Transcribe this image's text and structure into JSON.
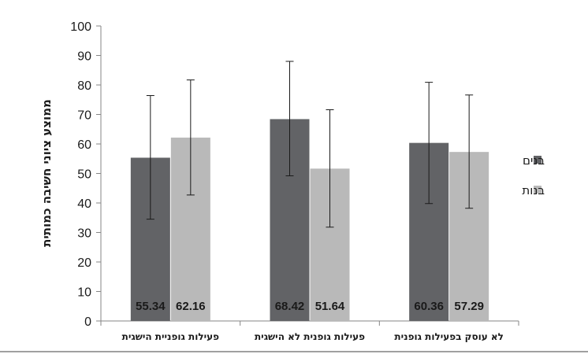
{
  "chart_data": {
    "type": "bar",
    "title": "",
    "xlabel": "",
    "ylabel": "ממוצע ציוני חשיבה כמותית",
    "ylim": [
      0,
      100
    ],
    "ytick_step": 10,
    "categories": [
      "פעילות  גופניית הישגית",
      "פעילות גופנית לא הישגית",
      "לא עוסק בפעילות גופנית"
    ],
    "series": [
      {
        "name": "בנים",
        "color": "#626366",
        "values": [
          55.34,
          68.42,
          60.36
        ],
        "value_labels": [
          "55.34",
          "68.42",
          "60.36"
        ],
        "error_low": [
          34.5,
          49.2,
          39.8
        ],
        "error_high": [
          76.4,
          88.0,
          80.9
        ]
      },
      {
        "name": "בנות",
        "color": "#b9b9b9",
        "values": [
          62.16,
          51.64,
          57.29
        ],
        "value_labels": [
          "62.16",
          "51.64",
          "57.29"
        ],
        "error_low": [
          42.7,
          31.8,
          38.2
        ],
        "error_high": [
          81.7,
          71.6,
          76.6
        ]
      }
    ],
    "legend_position": "right"
  }
}
